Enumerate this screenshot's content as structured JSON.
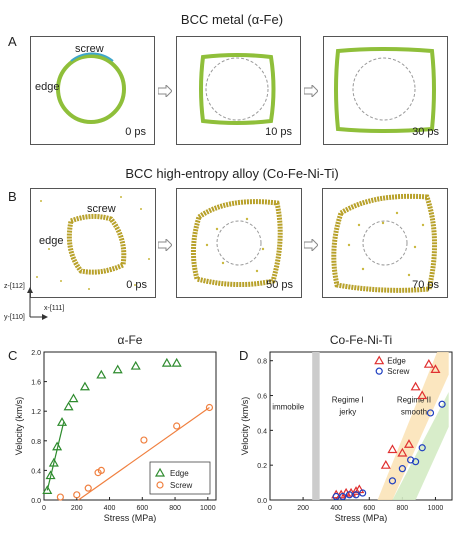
{
  "top": {
    "title": "BCC metal (α-Fe)",
    "letter": "A",
    "label_screw": "screw",
    "label_edge": "edge",
    "times": [
      "0 ps",
      "10 ps",
      "30 ps"
    ]
  },
  "middle": {
    "title": "BCC high-entropy alloy (Co-Fe-Ni-Ti)",
    "letter": "B",
    "label_screw": "screw",
    "label_edge": "edge",
    "times": [
      "0 ps",
      "50 ps",
      "70 ps"
    ],
    "axes": {
      "z": "z-[112]",
      "x": "x-[111]",
      "y": "y-[110]"
    }
  },
  "colors": {
    "line_green": "#8fbf3a",
    "line_blue": "#3fa7c9",
    "alloy_gold": "#b8a12a",
    "edge_series": "#2e8b2e",
    "screw_series": "#f08040",
    "edge_red": "#e03030",
    "screw_blue": "#2040c0"
  },
  "chart_data": [
    {
      "type": "scatter",
      "panel": "C",
      "title": "α-Fe",
      "xlabel": "Stress (MPa)",
      "ylabel": "Velocity (km/s)",
      "xlim": [
        0,
        1050
      ],
      "ylim": [
        0,
        2.0
      ],
      "xticks": [
        "0",
        "200",
        "400",
        "600",
        "800",
        "1000"
      ],
      "yticks": [
        "0.0",
        "0.4",
        "0.8",
        "1.2",
        "1.6",
        "2.0"
      ],
      "series": [
        {
          "name": "Edge",
          "marker": "triangle",
          "x": [
            20,
            40,
            60,
            80,
            110,
            150,
            180,
            250,
            350,
            450,
            560,
            750,
            810
          ],
          "y": [
            0.13,
            0.33,
            0.5,
            0.72,
            1.05,
            1.26,
            1.37,
            1.53,
            1.69,
            1.76,
            1.81,
            1.85,
            1.85
          ]
        },
        {
          "name": "Screw",
          "marker": "circle",
          "x": [
            100,
            200,
            270,
            330,
            350,
            610,
            810,
            1010
          ],
          "y": [
            0.04,
            0.07,
            0.16,
            0.37,
            0.4,
            0.81,
            1.0,
            1.25
          ]
        }
      ],
      "fit_lines": [
        {
          "series": "Edge",
          "x": [
            20,
            120
          ],
          "y": [
            0.13,
            1.05
          ]
        },
        {
          "series": "Screw",
          "x": [
            210,
            1010
          ],
          "y": [
            0.0,
            1.25
          ]
        }
      ]
    },
    {
      "type": "scatter",
      "panel": "D",
      "title": "Co-Fe-Ni-Ti",
      "xlabel": "Stress (MPa)",
      "ylabel": "Velocity (km/s)",
      "xlim": [
        0,
        1100
      ],
      "ylim": [
        0,
        0.85
      ],
      "xticks": [
        "0",
        "200",
        "400",
        "600",
        "800",
        "1000"
      ],
      "yticks": [
        "0.0",
        "0.2",
        "0.4",
        "0.6",
        "0.8"
      ],
      "annotations": [
        "immobile",
        "Regime I",
        "jerky",
        "Regime II",
        "smooth"
      ],
      "series": [
        {
          "name": "Edge",
          "marker": "triangle",
          "x": [
            400,
            430,
            460,
            490,
            520,
            540,
            700,
            740,
            800,
            840,
            880,
            920,
            960,
            1000
          ],
          "y": [
            0.03,
            0.03,
            0.04,
            0.04,
            0.05,
            0.06,
            0.2,
            0.29,
            0.27,
            0.32,
            0.65,
            0.6,
            0.78,
            0.75
          ]
        },
        {
          "name": "Screw",
          "marker": "circle",
          "x": [
            400,
            440,
            480,
            520,
            560,
            740,
            800,
            850,
            880,
            920,
            970,
            1040
          ],
          "y": [
            0.02,
            0.02,
            0.03,
            0.03,
            0.04,
            0.11,
            0.18,
            0.23,
            0.22,
            0.3,
            0.5,
            0.55
          ]
        }
      ]
    }
  ]
}
